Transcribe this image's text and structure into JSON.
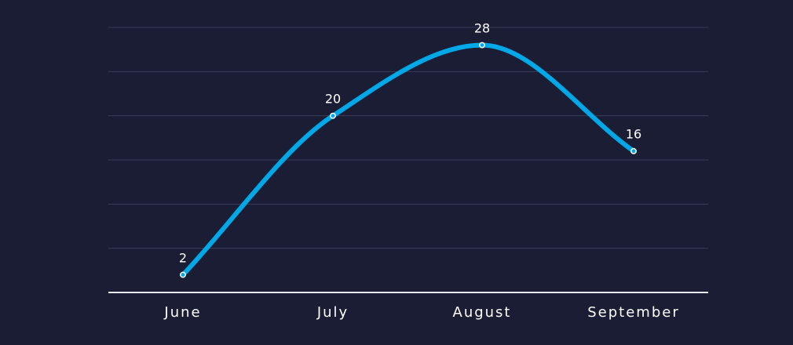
{
  "chart_data": {
    "type": "line",
    "categories": [
      "June",
      "July",
      "August",
      "September"
    ],
    "series": [
      {
        "values": [
          2,
          20,
          28,
          16
        ]
      }
    ],
    "data_labels": [
      "2",
      "20",
      "28",
      "16"
    ],
    "ylim": [
      0,
      30
    ],
    "grid": true,
    "smooth": true,
    "colors": {
      "background": "#1b1d34",
      "line": "#00a8e8",
      "grid": "#3a3c58",
      "axis": "#e8e8f0",
      "text": "#ffffff"
    }
  }
}
